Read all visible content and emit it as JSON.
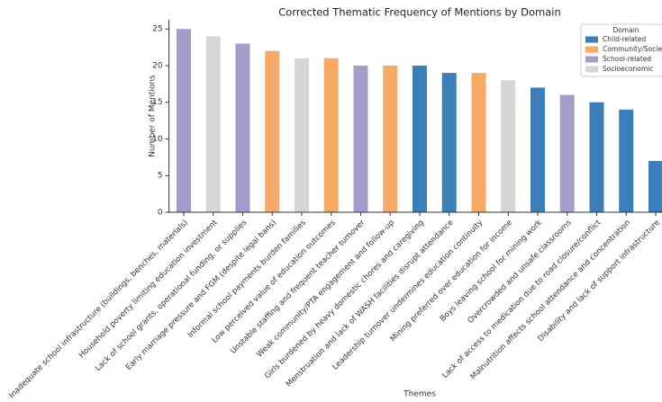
{
  "chart_data": {
    "type": "bar",
    "title": "Corrected Thematic Frequency of Mentions by Domain",
    "x_label": "Themes",
    "y_label": "Number of Mentions",
    "legend_title": "Domain",
    "legend": "upper right",
    "categories": [
      "Inadequate school infrastructure (buildings, benches, materials)",
      "Household poverty limiting education investment",
      "Lack of school grants, operational funding, or supplies",
      "Early marriage pressure and FGM (despite legal bans)",
      "Informal school payments burden families",
      "Low perceived value of education outcomes",
      "Unstable staffing and frequent teacher turnover",
      "Weak community/PTA engagement and follow-up",
      "Girls burdened by heavy domestic chores and caregiving",
      "Menstruation and lack of WASH facilities disrupt attendance",
      "Leadership turnover undermines education continuity",
      "Mining preferred over education for income",
      "Boys leaving school for mining work",
      "Overcrowded and unsafe classrooms",
      "Lack of access to medication due to road closure/conflict",
      "Malnutrition affects school attendance and concentration",
      "Disability and lack of support infrastructure"
    ],
    "series": [
      {
        "name": "Child-related",
        "color": "#3a7fb9",
        "values": [
          null,
          null,
          null,
          null,
          null,
          null,
          null,
          null,
          20,
          19,
          null,
          null,
          17,
          null,
          15,
          14,
          7
        ]
      },
      {
        "name": "Community/Societal",
        "color": "#f7aa67",
        "values": [
          null,
          null,
          null,
          22,
          null,
          21,
          null,
          20,
          null,
          null,
          19,
          null,
          null,
          null,
          null,
          null,
          null
        ]
      },
      {
        "name": "School-related",
        "color": "#a29dca",
        "values": [
          25,
          null,
          23,
          null,
          null,
          null,
          20,
          null,
          null,
          null,
          null,
          null,
          null,
          16,
          null,
          null,
          null
        ]
      },
      {
        "name": "Socioeconomic",
        "color": "#d6d6d6",
        "values": [
          null,
          24,
          null,
          null,
          21,
          null,
          null,
          null,
          null,
          null,
          null,
          18,
          null,
          null,
          null,
          null,
          null
        ]
      }
    ],
    "ylim": [
      0,
      26.25
    ],
    "yticks": [
      0,
      5,
      10,
      15,
      20,
      25
    ],
    "grid": false
  }
}
